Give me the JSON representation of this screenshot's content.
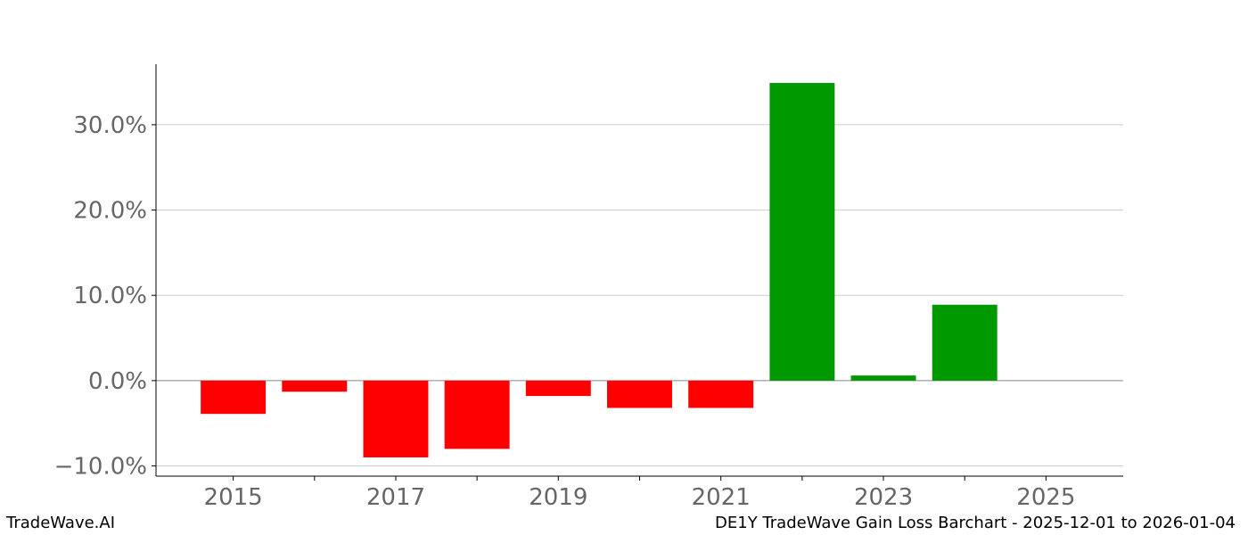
{
  "chart_data": {
    "type": "bar",
    "categories": [
      2015,
      2016,
      2017,
      2018,
      2019,
      2020,
      2021,
      2022,
      2023,
      2024
    ],
    "values": [
      -3.9,
      -1.3,
      -9.0,
      -8.0,
      -1.8,
      -3.2,
      -3.2,
      34.9,
      0.6,
      8.9
    ],
    "x_ticks": [
      2015,
      2016,
      2017,
      2018,
      2019,
      2020,
      2021,
      2022,
      2023,
      2024,
      2025
    ],
    "x_tick_labels": [
      "2015",
      "",
      "2017",
      "",
      "2019",
      "",
      "2021",
      "",
      "2023",
      "",
      "2025"
    ],
    "y_ticks": [
      -10,
      0,
      10,
      20,
      30
    ],
    "y_tick_labels": [
      "−10.0%",
      "0.0%",
      "10.0%",
      "20.0%",
      "30.0%"
    ],
    "xlim": [
      2014.05,
      2025.95
    ],
    "ylim": [
      -11.2,
      37.1
    ],
    "grid": "horizontal",
    "colors": {
      "gain": "#009900",
      "loss": "#ff0000"
    },
    "title": "",
    "xlabel": "",
    "ylabel": ""
  },
  "footer": {
    "brand": "TradeWave.AI",
    "caption": "DE1Y TradeWave Gain Loss Barchart - 2025-12-01 to 2026-01-04"
  }
}
